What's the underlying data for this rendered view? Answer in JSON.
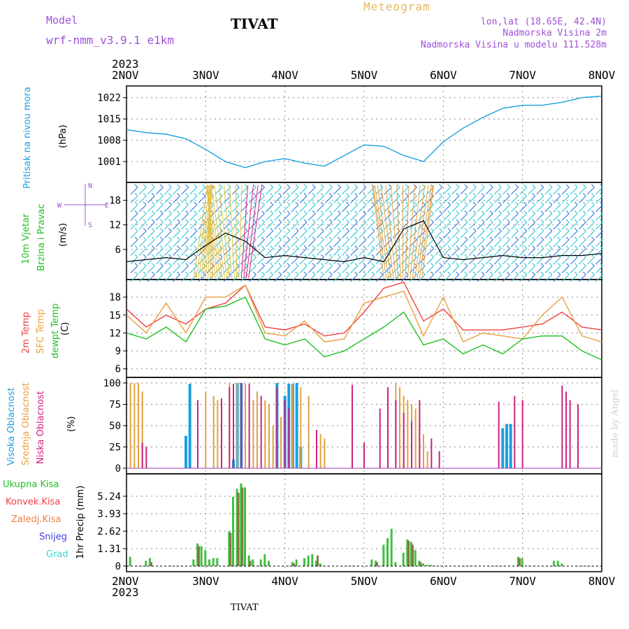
{
  "header": {
    "model_label": "Model",
    "model_name": "wrf-nmm_v3.9.1 e1km",
    "station": "TIVAT",
    "meteogram": "Meteogram",
    "coords": "lon,lat (18.65E, 42.4N)",
    "elevation": "Nadmorska Visina 2m",
    "model_elevation": "Nadmorska Visina u modelu 111.528m"
  },
  "top_axis": {
    "year": "2023",
    "start": "2NOV"
  },
  "bottom_axis": {
    "year": "2023",
    "start": "2NOV"
  },
  "footer_station": "TIVAT",
  "credit": "made by Angel",
  "days": [
    "2NOV",
    "3NOV",
    "4NOV",
    "5NOV",
    "6NOV",
    "7NOV",
    "8NOV"
  ],
  "colors": {
    "pressure": "#1aa0e0",
    "t2m": "#f04040",
    "tsfc": "#e8a040",
    "dew": "#20c020",
    "high": "#1aa0e0",
    "mid": "#e0a040",
    "low": "#d02080",
    "total": "#40c040",
    "conv": "#f04040",
    "frozen": "#f08040",
    "snow": "#4040e0",
    "grad": "#40d0d0",
    "wind": "#30c8d8",
    "wind2": "#3080e0",
    "windspeed": "#000000",
    "purple": "#a050d8"
  },
  "panels": {
    "pressure": {
      "label1": "Pritisak na nivou mora",
      "unit": "(hPa)",
      "ticks": [
        "1022",
        "1015",
        "1008",
        "1001"
      ]
    },
    "wind": {
      "label1": "10m Vjetar",
      "label2": "Brzina i Pravac",
      "unit": "(m/s)",
      "ticks": [
        "18",
        "12",
        "6"
      ],
      "compass": {
        "n": "N",
        "s": "S",
        "w": "W",
        "e": "E"
      }
    },
    "temp": {
      "label1": "2m Temp",
      "label2": "SFC Temp",
      "label3": "dewpt Temp",
      "unit": "(C)",
      "ticks": [
        "18",
        "15",
        "12",
        "9",
        "6"
      ]
    },
    "cloud": {
      "label1": "Visoka Oblacnost",
      "label2": "Srednja Oblacnost",
      "label3": "Niska Oblacnost",
      "unit": "(%)",
      "ticks": [
        "100",
        "75",
        "50",
        "25",
        "0"
      ]
    },
    "precip": {
      "legend": [
        "Ukupna Kisa",
        "Konvek.Kisa",
        "Zaledj.Kisa",
        "Snijeg",
        "Grad"
      ],
      "unit": "1hr Precip (mm)",
      "ticks": [
        "5.24",
        "3.93",
        "2.62",
        "1.31",
        "0"
      ]
    }
  },
  "chart_data": [
    {
      "type": "line",
      "title": "Pritisak na nivou mora",
      "ylabel": "(hPa)",
      "ylim": [
        996,
        1024
      ],
      "x_days": [
        0,
        0.25,
        0.5,
        0.75,
        1.0,
        1.25,
        1.5,
        1.75,
        2.0,
        2.25,
        2.5,
        2.75,
        3.0,
        3.25,
        3.5,
        3.75,
        4.0,
        4.25,
        4.5,
        4.75,
        5.0,
        5.25,
        5.5,
        5.75,
        6.0
      ],
      "series": [
        {
          "values": [
            1011.5,
            1010.5,
            1010,
            1008.5,
            1005,
            1001,
            999,
            1001,
            1002,
            1000.5,
            999.5,
            1003,
            1006.5,
            1006,
            1003,
            1001,
            1007.5,
            1012,
            1015.5,
            1018.5,
            1019.5,
            1019.5,
            1020.5,
            1022,
            1022.5
          ]
        }
      ]
    },
    {
      "type": "line",
      "title": "10m Vjetar",
      "ylabel": "(m/s)",
      "ylim": [
        0,
        21
      ],
      "x_days": [
        0,
        0.25,
        0.5,
        0.75,
        1.0,
        1.25,
        1.5,
        1.75,
        2.0,
        2.25,
        2.5,
        2.75,
        3.0,
        3.25,
        3.5,
        3.75,
        4.0,
        4.25,
        4.5,
        4.75,
        5.0,
        5.25,
        5.5,
        5.75,
        6.0
      ],
      "series": [
        {
          "values": [
            3,
            3.5,
            4,
            3.5,
            7,
            10,
            8,
            4,
            4.5,
            4,
            3.5,
            3,
            4,
            3,
            11,
            13,
            4,
            3.5,
            4,
            4.5,
            4,
            4,
            4.5,
            4.5,
            5
          ]
        }
      ]
    },
    {
      "type": "line",
      "title": "Temp",
      "ylabel": "(C)",
      "ylim": [
        5.5,
        20
      ],
      "x_days": [
        0,
        0.25,
        0.5,
        0.75,
        1.0,
        1.25,
        1.5,
        1.75,
        2.0,
        2.25,
        2.5,
        2.75,
        3.0,
        3.25,
        3.5,
        3.75,
        4.0,
        4.25,
        4.5,
        4.75,
        5.0,
        5.25,
        5.5,
        5.75,
        6.0
      ],
      "series": [
        {
          "name": "2m Temp",
          "values": [
            16,
            13,
            15,
            13.5,
            16,
            17,
            20,
            13,
            12.5,
            13.5,
            11.5,
            12,
            15.5,
            19.5,
            20.5,
            14,
            16,
            12.5,
            12.5,
            12.5,
            13,
            13.5,
            15.5,
            13,
            12.5
          ]
        },
        {
          "name": "SFC Temp",
          "values": [
            15,
            12,
            17,
            12,
            18,
            18,
            20,
            12,
            11.5,
            14,
            10.5,
            11,
            17,
            18,
            19,
            11.5,
            18,
            10.5,
            12,
            11.5,
            11,
            15,
            18,
            11.5,
            10.5
          ]
        },
        {
          "name": "dewpt Temp",
          "values": [
            12,
            11,
            13,
            10.5,
            16,
            16.5,
            18,
            11,
            10,
            11,
            8,
            9,
            11,
            13,
            15.5,
            10,
            11,
            8.5,
            10,
            8.5,
            11,
            11.5,
            11.5,
            9,
            7.5
          ]
        }
      ]
    },
    {
      "type": "bar",
      "title": "Oblacnost",
      "ylabel": "(%)",
      "ylim": [
        0,
        100
      ],
      "series": [
        {
          "name": "Visoka Oblacnost",
          "x_days": [
            0.75,
            0.8,
            1.35,
            1.4,
            1.45,
            1.9,
            2.0,
            2.05,
            2.1,
            2.15,
            2.2,
            4.75,
            4.8,
            4.85
          ],
          "values": [
            38,
            99,
            10,
            100,
            100,
            100,
            85,
            99,
            99,
            100,
            25,
            47,
            52,
            52
          ]
        },
        {
          "name": "Srednja Oblacnost",
          "x_days": [
            0.05,
            0.1,
            0.15,
            0.2,
            1.0,
            1.1,
            1.15,
            1.3,
            1.4,
            1.5,
            1.6,
            1.65,
            1.75,
            1.8,
            1.85,
            1.95,
            2.1,
            2.2,
            2.3,
            2.45,
            2.5,
            3.4,
            3.45,
            3.5,
            3.55,
            3.6,
            3.65,
            3.7,
            3.75,
            3.8
          ],
          "values": [
            100,
            100,
            100,
            90,
            90,
            85,
            80,
            100,
            100,
            99,
            80,
            90,
            80,
            75,
            50,
            60,
            98,
            95,
            85,
            40,
            35,
            100,
            95,
            85,
            80,
            75,
            70,
            60,
            40,
            20
          ]
        },
        {
          "name": "Niska Oblacnost",
          "x_days": [
            0.2,
            0.25,
            0.9,
            1.2,
            1.3,
            1.35,
            1.45,
            1.55,
            1.7,
            1.9,
            2.0,
            2.05,
            2.4,
            2.85,
            3.0,
            3.2,
            3.3,
            3.4,
            3.5,
            3.6,
            3.7,
            3.85,
            3.95,
            4.7,
            4.9,
            5.0,
            5.5,
            5.55,
            5.6,
            5.7
          ],
          "values": [
            30,
            25,
            80,
            82,
            95,
            99,
            100,
            99,
            85,
            95,
            80,
            70,
            45,
            98,
            30,
            70,
            95,
            80,
            65,
            55,
            80,
            35,
            20,
            78,
            85,
            80,
            97,
            90,
            80,
            75
          ]
        }
      ]
    },
    {
      "type": "bar",
      "title": "1hr Precip",
      "ylabel": "1hr Precip (mm)",
      "ylim": [
        0,
        6.5
      ],
      "series": [
        {
          "name": "Ukupna Kisa",
          "x_days": [
            0.05,
            0.25,
            0.3,
            0.85,
            0.9,
            0.95,
            1.0,
            1.05,
            1.1,
            1.15,
            1.3,
            1.35,
            1.4,
            1.45,
            1.5,
            1.55,
            1.6,
            1.7,
            1.75,
            1.8,
            2.1,
            2.15,
            2.25,
            2.3,
            2.35,
            2.4,
            2.45,
            3.1,
            3.15,
            3.25,
            3.3,
            3.35,
            3.4,
            3.5,
            3.55,
            3.6,
            3.65,
            3.7,
            3.75,
            3.8,
            3.85,
            4.95,
            5.0,
            5.4,
            5.45,
            5.5
          ],
          "values": [
            0.7,
            0.4,
            0.6,
            0.5,
            1.7,
            1.5,
            1.2,
            0.5,
            0.6,
            0.6,
            2.6,
            5.2,
            5.8,
            6.2,
            5.9,
            0.8,
            0.5,
            0.5,
            0.9,
            0.4,
            0.3,
            0.5,
            0.6,
            0.8,
            0.9,
            0.4,
            0.2,
            0.5,
            0.4,
            1.6,
            2.1,
            2.8,
            0.3,
            1.0,
            2.0,
            1.8,
            1.2,
            0.4,
            0.2,
            0.1,
            0.1,
            0.7,
            0.6,
            0.4,
            0.4,
            0.2
          ]
        },
        {
          "name": "Konvek.Kisa",
          "x_days": [
            0.3,
            0.9,
            1.3,
            1.4,
            1.45,
            1.55,
            2.1,
            2.4,
            3.15,
            3.55,
            3.6,
            3.7,
            4.95
          ],
          "values": [
            0.3,
            1.5,
            2.5,
            5.5,
            5.9,
            0.4,
            0.2,
            0.8,
            0.3,
            1.9,
            1.6,
            0.3,
            0.6
          ]
        }
      ]
    }
  ]
}
